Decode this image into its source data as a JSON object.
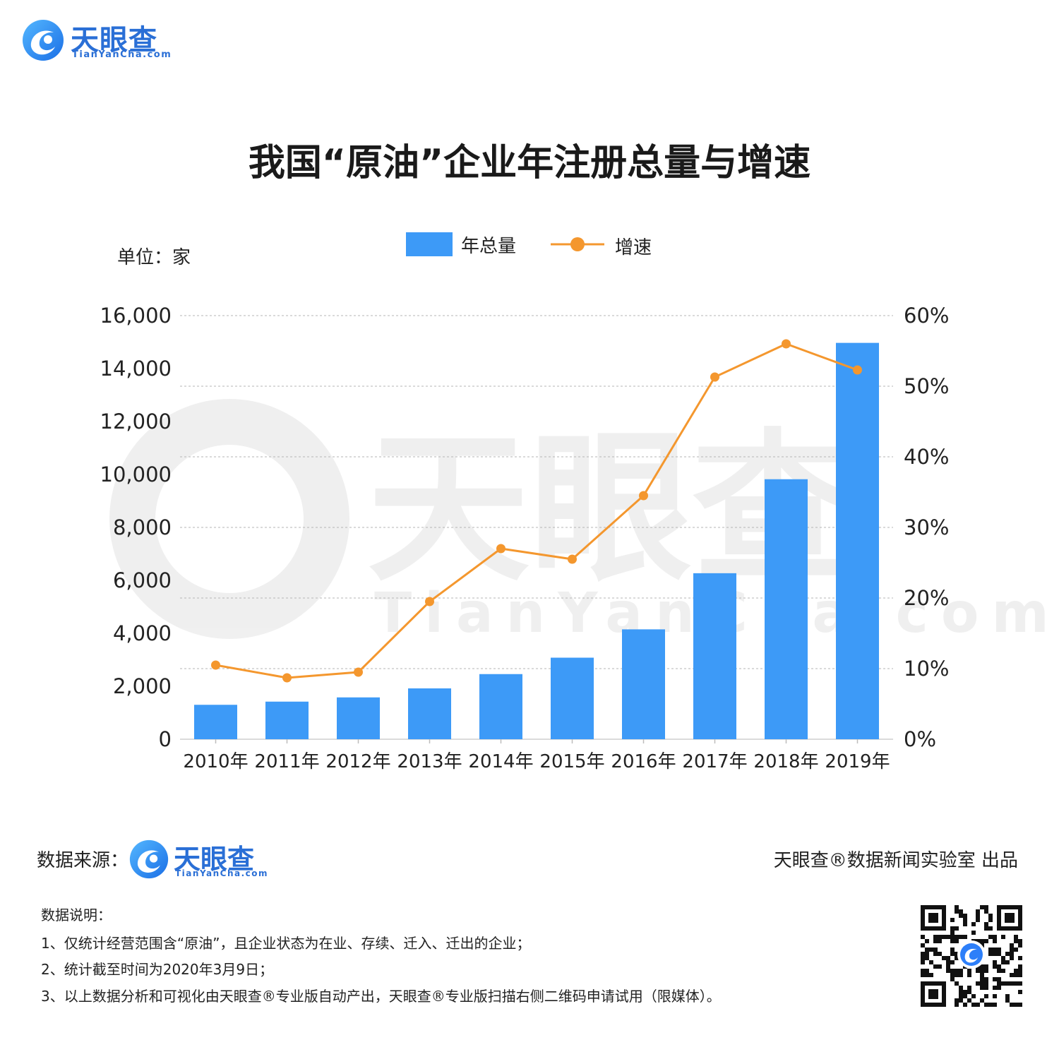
{
  "brand": {
    "name": "天眼查",
    "domain": "TianYanCha.com",
    "watermark_name": "天眼查",
    "watermark_domain": "TianYanCha.com",
    "primary_color": "#2d7ff9",
    "accent_color": "#4aa3ff"
  },
  "chart_title": "我国“原油”企业年注册总量与增速",
  "unit_label": "单位：家",
  "legend": {
    "bar_label": "年总量",
    "line_label": "增速",
    "position": "top-center"
  },
  "chart_data": {
    "type": "bar+line",
    "title": "我国“原油”企业年注册总量与增速",
    "categories": [
      "2010年",
      "2011年",
      "2012年",
      "2013年",
      "2014年",
      "2015年",
      "2016年",
      "2017年",
      "2018年",
      "2019年"
    ],
    "series": [
      {
        "name": "年总量",
        "type": "bar",
        "axis": "left",
        "color": "#3d9af7",
        "values": [
          1300,
          1420,
          1580,
          1920,
          2460,
          3080,
          4150,
          6270,
          9820,
          14970
        ]
      },
      {
        "name": "增速",
        "type": "line",
        "axis": "right",
        "color": "#f4972e",
        "values": [
          0.105,
          0.087,
          0.095,
          0.195,
          0.27,
          0.255,
          0.345,
          0.513,
          0.56,
          0.523
        ]
      }
    ],
    "y_left": {
      "ylim": [
        0,
        16000
      ],
      "ticks": [
        "0",
        "2,000",
        "4,000",
        "6,000",
        "8,000",
        "10,000",
        "12,000",
        "14,000",
        "16,000"
      ]
    },
    "y_right": {
      "ylim": [
        0,
        0.6
      ],
      "ticks": [
        "0%",
        "10%",
        "20%",
        "30%",
        "40%",
        "50%",
        "60%"
      ]
    },
    "grid": "horizontal-dashed"
  },
  "footer": {
    "source_label": "数据来源：",
    "credit": "天眼查®数据新闻实验室 出品",
    "notes_title": "数据说明：",
    "notes": [
      "1、仅统计经营范围含“原油”，且企业状态为在业、存续、迁入、迁出的企业；",
      "2、统计截至时间为2020年3月9日；",
      "3、以上数据分析和可视化由天眼查®专业版自动产出，天眼查®专业版扫描右侧二维码申请试用（限媒体）。"
    ]
  },
  "qr_code": {
    "icon": "qr-code-icon"
  }
}
